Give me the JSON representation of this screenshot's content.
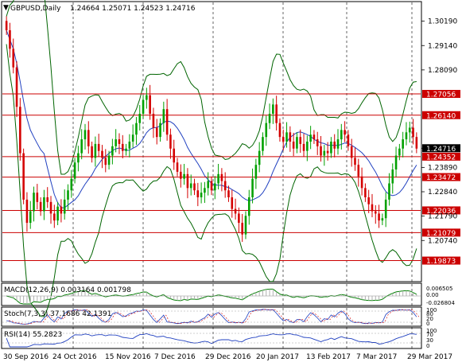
{
  "header": {
    "symbol_label": "GBPUSD,Daily",
    "ohlc_label": "1.24664 1.25071 1.24523 1.24716"
  },
  "levels": [
    "1.27056",
    "1.26140",
    "1.24352",
    "1.23472",
    "1.22036",
    "1.21079",
    "1.19873"
  ],
  "current_price": "1.24716",
  "price_axis": [
    "1.30190",
    "1.29140",
    "1.28090",
    "1.27056",
    "1.26140",
    "1.24716",
    "1.23890",
    "1.22840",
    "1.21790",
    "1.20740"
  ],
  "date_axis": [
    "30 Sep 2016",
    "24 Oct 2016",
    "15 Nov 2016",
    "7 Dec 2016",
    "29 Dec 2016",
    "20 Jan 2017",
    "13 Feb 2017",
    "7 Mar 2017",
    "29 Mar 2017"
  ],
  "indicators": {
    "macd_label": "MACD(12,26,9) 0.003164 0.001798",
    "macd_axis": [
      "0.006505",
      "0.00",
      "-0.026804"
    ],
    "stoch_label": "Stoch(7,3,3) 37.1686 42.1391",
    "stoch_axis": [
      "100",
      "80",
      "20",
      "0"
    ],
    "rsi_label": "RSI(14) 55.2823",
    "rsi_axis": [
      "100",
      "70",
      "30",
      "0"
    ]
  },
  "colors": {
    "candle_bull": "#00a000",
    "candle_bear": "#d40000",
    "level_line": "#cc0000",
    "band_outer": "#006400",
    "band_inner": "#2040c0",
    "current_box": "#000000"
  },
  "chart_data": {
    "type": "candlestick",
    "symbol": "GBPUSD",
    "timeframe": "Daily",
    "x_range": [
      "30 Sep 2016",
      "29 Mar 2017"
    ],
    "y_range": [
      1.19,
      1.31
    ],
    "closes": [
      1.298,
      1.29,
      1.282,
      1.265,
      1.245,
      1.225,
      1.215,
      1.22,
      1.228,
      1.224,
      1.22,
      1.226,
      1.224,
      1.219,
      1.216,
      1.222,
      1.219,
      1.225,
      1.229,
      1.234,
      1.241,
      1.245,
      1.251,
      1.255,
      1.248,
      1.243,
      1.249,
      1.246,
      1.243,
      1.24,
      1.244,
      1.248,
      1.251,
      1.249,
      1.246,
      1.247,
      1.25,
      1.253,
      1.258,
      1.262,
      1.268,
      1.27,
      1.262,
      1.256,
      1.252,
      1.258,
      1.264,
      1.253,
      1.247,
      1.241,
      1.237,
      1.234,
      1.236,
      1.23,
      1.232,
      1.229,
      1.226,
      1.228,
      1.23,
      1.233,
      1.229,
      1.232,
      1.236,
      1.233,
      1.229,
      1.226,
      1.221,
      1.219,
      1.215,
      1.21,
      1.218,
      1.226,
      1.234,
      1.24,
      1.246,
      1.252,
      1.258,
      1.262,
      1.266,
      1.258,
      1.252,
      1.25,
      1.254,
      1.25,
      1.247,
      1.252,
      1.249,
      1.246,
      1.25,
      1.253,
      1.251,
      1.248,
      1.244,
      1.246,
      1.245,
      1.25,
      1.247,
      1.251,
      1.255,
      1.253,
      1.248,
      1.243,
      1.24,
      1.235,
      1.23,
      1.226,
      1.223,
      1.22,
      1.219,
      1.216,
      1.217,
      1.225,
      1.232,
      1.238,
      1.244,
      1.247,
      1.251,
      1.254,
      1.256,
      1.252,
      1.247
    ],
    "indicators": {
      "macd": {
        "value": 0.003164,
        "signal": 0.001798
      },
      "stochastic": {
        "k": 37.1686,
        "d": 42.1391
      },
      "rsi": {
        "value": 55.2823
      }
    }
  }
}
